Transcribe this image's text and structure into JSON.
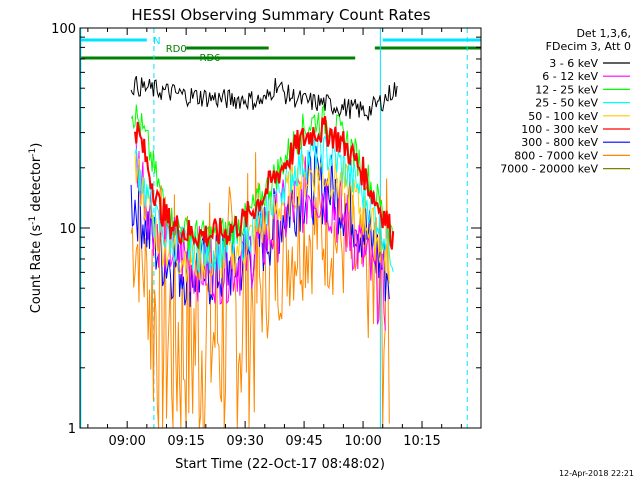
{
  "chart_data": {
    "type": "line",
    "title": "HESSI Observing Summary Count Rates",
    "xlabel": "Start Time (22-Oct-17 08:48:02)",
    "ylabel_main": "Count Rate (s",
    "ylabel_exp": "-1",
    "ylabel_tail": " detector",
    "ylabel_close": ")",
    "x_range_min": [
      48,
      150
    ],
    "y_scale": "log",
    "ylim": [
      1,
      100
    ],
    "x_ticks": [
      {
        "t": 60,
        "label": "09:00"
      },
      {
        "t": 75,
        "label": "09:15"
      },
      {
        "t": 90,
        "label": "09:30"
      },
      {
        "t": 105,
        "label": "09:45"
      },
      {
        "t": 120,
        "label": "10:00"
      },
      {
        "t": 135,
        "label": "10:15"
      }
    ],
    "y_ticks": [
      {
        "v": 1,
        "label": "1"
      },
      {
        "v": 10,
        "label": "10"
      },
      {
        "v": 100,
        "label": "100"
      }
    ],
    "legend_header": [
      "Det 1,3,6,",
      "FDecim 3, Att 0"
    ],
    "series": [
      {
        "name": "3 - 6 keV",
        "color": "#000000",
        "points": [
          [
            61,
            52
          ],
          [
            65,
            50
          ],
          [
            70,
            48
          ],
          [
            75,
            46
          ],
          [
            80,
            45
          ],
          [
            85,
            44
          ],
          [
            90,
            44
          ],
          [
            95,
            43
          ],
          [
            98,
            53
          ],
          [
            100,
            47
          ],
          [
            105,
            43
          ],
          [
            110,
            42
          ],
          [
            115,
            40
          ],
          [
            119,
            39
          ],
          [
            121,
            38
          ],
          [
            124,
            42
          ],
          [
            126,
            45
          ],
          [
            128,
            50
          ],
          [
            129,
            45
          ]
        ]
      },
      {
        "name": "6 - 12 keV",
        "color": "#ff00ff",
        "points": [
          [
            62,
            23
          ],
          [
            64,
            17
          ],
          [
            67,
            10.5
          ],
          [
            70,
            8.5
          ],
          [
            75,
            7.0
          ],
          [
            80,
            6.5
          ],
          [
            85,
            6.5
          ],
          [
            90,
            7.2
          ],
          [
            95,
            8.8
          ],
          [
            100,
            11.5
          ],
          [
            105,
            14.5
          ],
          [
            108,
            15.8
          ],
          [
            111,
            14.5
          ],
          [
            115,
            11
          ],
          [
            119,
            8
          ],
          [
            122,
            6
          ],
          [
            124,
            5
          ],
          [
            126,
            4.5
          ]
        ]
      },
      {
        "name": "12 - 25 keV",
        "color": "#00ff00",
        "points": [
          [
            61,
            40
          ],
          [
            63,
            34
          ],
          [
            65,
            27
          ],
          [
            67,
            19
          ],
          [
            69,
            14
          ],
          [
            71,
            11
          ],
          [
            75,
            9.5
          ],
          [
            80,
            9
          ],
          [
            85,
            9.5
          ],
          [
            90,
            11
          ],
          [
            95,
            15
          ],
          [
            100,
            22
          ],
          [
            104,
            30
          ],
          [
            108,
            35
          ],
          [
            112,
            33
          ],
          [
            116,
            27
          ],
          [
            120,
            20
          ],
          [
            123,
            15
          ],
          [
            126,
            11
          ],
          [
            128,
            8.5
          ]
        ]
      },
      {
        "name": "25 - 50 keV",
        "color": "#00ffff",
        "points": [
          [
            62,
            22
          ],
          [
            64,
            17
          ],
          [
            67,
            11
          ],
          [
            70,
            9
          ],
          [
            75,
            8
          ],
          [
            80,
            7.5
          ],
          [
            85,
            8
          ],
          [
            90,
            9
          ],
          [
            95,
            12
          ],
          [
            100,
            17
          ],
          [
            104,
            21
          ],
          [
            108,
            24
          ],
          [
            112,
            23
          ],
          [
            116,
            19
          ],
          [
            120,
            15
          ],
          [
            123,
            12
          ],
          [
            126,
            9
          ],
          [
            128,
            7
          ]
        ]
      },
      {
        "name": "50 - 100 keV",
        "color": "#ffcc00",
        "points": [
          [
            62,
            20
          ],
          [
            64,
            15
          ],
          [
            67,
            10
          ],
          [
            70,
            8
          ],
          [
            75,
            7.2
          ],
          [
            80,
            7
          ],
          [
            85,
            7.2
          ],
          [
            90,
            8.2
          ],
          [
            95,
            10.5
          ],
          [
            100,
            14
          ],
          [
            104,
            17.5
          ],
          [
            108,
            19.5
          ],
          [
            112,
            18.5
          ],
          [
            116,
            15.5
          ],
          [
            120,
            12
          ],
          [
            124,
            8.5
          ],
          [
            127,
            6.5
          ]
        ]
      },
      {
        "name": "100 - 300 keV",
        "color": "#ff0000",
        "points": [
          [
            62,
            33
          ],
          [
            64,
            25
          ],
          [
            66,
            18
          ],
          [
            68,
            13
          ],
          [
            71,
            10.5
          ],
          [
            75,
            9.5
          ],
          [
            80,
            9.2
          ],
          [
            85,
            9.5
          ],
          [
            90,
            11
          ],
          [
            95,
            15
          ],
          [
            100,
            21
          ],
          [
            104,
            27
          ],
          [
            108,
            31
          ],
          [
            112,
            30
          ],
          [
            116,
            25
          ],
          [
            120,
            19
          ],
          [
            123,
            14
          ],
          [
            126,
            11
          ],
          [
            128,
            8.5
          ]
        ]
      },
      {
        "name": "300 - 800 keV",
        "color": "#0000ff",
        "points": [
          [
            61,
            14
          ],
          [
            63,
            13
          ],
          [
            66,
            9
          ],
          [
            70,
            7
          ],
          [
            75,
            6.2
          ],
          [
            80,
            6
          ],
          [
            85,
            6.2
          ],
          [
            90,
            7
          ],
          [
            95,
            9
          ],
          [
            100,
            12
          ],
          [
            104,
            15
          ],
          [
            108,
            16.5
          ],
          [
            112,
            15.5
          ],
          [
            116,
            13
          ],
          [
            120,
            10
          ],
          [
            124,
            7
          ],
          [
            127,
            5.5
          ]
        ]
      },
      {
        "name": "800 - 7000 keV",
        "color": "#ff8800",
        "points": [
          [
            61,
            9.5
          ],
          [
            63,
            8
          ],
          [
            65,
            5.5
          ],
          [
            67,
            4
          ],
          [
            70,
            3.1
          ],
          [
            73,
            2.9
          ],
          [
            76,
            2.8
          ],
          [
            80,
            2.9
          ],
          [
            85,
            3.3
          ],
          [
            90,
            4
          ],
          [
            95,
            5.5
          ],
          [
            100,
            7.5
          ],
          [
            104,
            9
          ],
          [
            108,
            10
          ],
          [
            112,
            9.5
          ],
          [
            116,
            8
          ],
          [
            120,
            6
          ],
          [
            124,
            4.2
          ],
          [
            127,
            3.2
          ]
        ]
      },
      {
        "name": "7000 - 20000 keV",
        "color": "#808000",
        "points": []
      }
    ],
    "attenuator_bars": [
      {
        "label": "N",
        "color": "#00e5ff",
        "segments": [
          [
            48,
            65
          ],
          [
            125,
            150
          ]
        ]
      },
      {
        "label": "RD0",
        "color": "#008000",
        "segments": [
          [
            75,
            96
          ],
          [
            123,
            150
          ]
        ]
      },
      {
        "label": "RD6",
        "color": "#008000",
        "segments": [
          [
            48,
            118
          ]
        ]
      }
    ],
    "vertical_lines": [
      {
        "t": 48.2,
        "color": "#00e5ff",
        "style": "solid"
      },
      {
        "t": 66.8,
        "color": "#00e5ff",
        "style": "dashed"
      },
      {
        "t": 124.4,
        "color": "#00e5ff",
        "style": "solid"
      },
      {
        "t": 146.5,
        "color": "#00e5ff",
        "style": "dashed"
      }
    ],
    "grid": false,
    "legend_placement": "right"
  },
  "footer_stamp": "12-Apr-2018 22:21"
}
